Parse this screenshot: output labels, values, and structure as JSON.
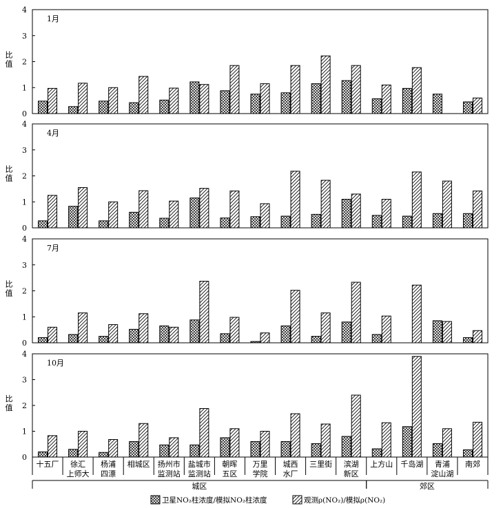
{
  "chart_data": {
    "type": "bar",
    "ylabel": "比值",
    "ylim": [
      0,
      4
    ],
    "yticks": [
      0,
      1,
      2,
      3,
      4
    ],
    "categories": [
      [
        "十五厂"
      ],
      [
        "徐汇",
        "上师大"
      ],
      [
        "杨浦",
        "四漂"
      ],
      [
        "相城区"
      ],
      [
        "扬州市",
        "监测站"
      ],
      [
        "盐城市",
        "监测站"
      ],
      [
        "朝晖",
        "五区"
      ],
      [
        "万里",
        "学院"
      ],
      [
        "城西",
        "水厂"
      ],
      [
        "三里街"
      ],
      [
        "滨湖",
        "新区"
      ],
      [
        "上方山"
      ],
      [
        "千岛湖"
      ],
      [
        "青浦",
        "淀山湖"
      ],
      [
        "南郊"
      ]
    ],
    "groups": [
      {
        "label": "城区",
        "from": 0,
        "to": 10
      },
      {
        "label": "郊区",
        "from": 11,
        "to": 14
      }
    ],
    "legend": {
      "series1": "卫星NO₂柱浓度/模拟NO₂柱浓度",
      "series2": "观测ρ(NO₂)/模拟ρ(NO₂)"
    },
    "panels": [
      {
        "label": "1月",
        "series": [
          {
            "values": [
              0.48,
              0.27,
              0.48,
              0.42,
              0.52,
              1.22,
              0.88,
              0.75,
              0.8,
              1.15,
              1.27,
              0.57,
              0.97,
              0.75,
              0.45
            ]
          },
          {
            "values": [
              0.97,
              1.17,
              1.0,
              1.43,
              0.98,
              1.12,
              1.85,
              1.15,
              1.85,
              2.22,
              1.85,
              1.1,
              1.77,
              0.0,
              0.6
            ]
          }
        ]
      },
      {
        "label": "4月",
        "series": [
          {
            "values": [
              0.27,
              0.83,
              0.27,
              0.6,
              0.37,
              1.15,
              0.38,
              0.43,
              0.45,
              0.52,
              1.1,
              0.48,
              0.45,
              0.55,
              0.55
            ]
          },
          {
            "values": [
              1.25,
              1.55,
              1.0,
              1.43,
              1.03,
              1.52,
              1.42,
              0.93,
              2.18,
              1.83,
              1.3,
              1.1,
              2.15,
              1.8,
              1.42
            ]
          }
        ]
      },
      {
        "label": "7月",
        "series": [
          {
            "values": [
              0.2,
              0.32,
              0.25,
              0.52,
              0.65,
              0.88,
              0.35,
              0.05,
              0.65,
              0.25,
              0.8,
              0.32,
              0.0,
              0.85,
              0.2
            ]
          },
          {
            "values": [
              0.6,
              1.15,
              0.7,
              1.12,
              0.6,
              2.37,
              0.98,
              0.38,
              2.02,
              1.15,
              2.33,
              1.03,
              2.22,
              0.82,
              0.47
            ]
          }
        ]
      },
      {
        "label": "10月",
        "series": [
          {
            "values": [
              0.2,
              0.3,
              0.18,
              0.6,
              0.47,
              0.47,
              0.75,
              0.6,
              0.6,
              0.52,
              0.8,
              0.32,
              1.18,
              0.52,
              0.28
            ]
          },
          {
            "values": [
              0.83,
              1.0,
              0.68,
              1.3,
              0.75,
              1.88,
              1.1,
              1.0,
              1.68,
              1.28,
              2.4,
              1.33,
              3.9,
              1.1,
              1.35
            ]
          }
        ]
      }
    ]
  }
}
